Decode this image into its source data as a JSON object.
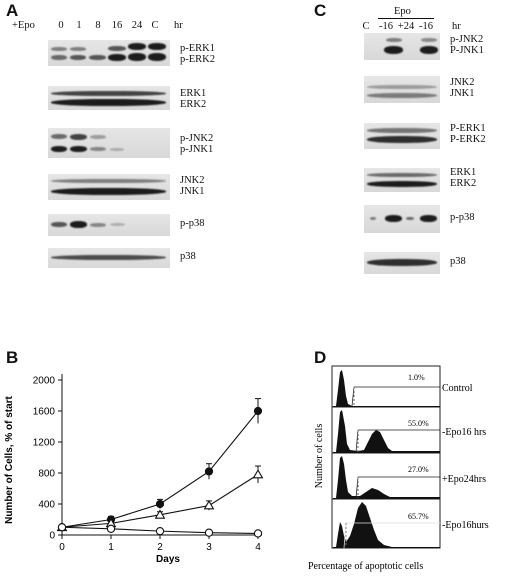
{
  "panelA": {
    "letter": "A",
    "treatment": "+Epo",
    "lanes": [
      "0",
      "1",
      "8",
      "16",
      "24",
      "C"
    ],
    "unit": "hr",
    "blots": [
      {
        "labels": [
          "p-ERK1",
          "p-ERK2"
        ]
      },
      {
        "labels": [
          "ERK1",
          "ERK2"
        ]
      },
      {
        "labels": [
          "p-JNK2",
          "p-JNK1"
        ]
      },
      {
        "labels": [
          "JNK2",
          "JNK1"
        ]
      },
      {
        "labels": [
          "p-p38"
        ]
      },
      {
        "labels": [
          "p38"
        ]
      }
    ]
  },
  "panelC": {
    "letter": "C",
    "treatment": "Epo",
    "lanes": [
      "C",
      "-16",
      "+24",
      "-16"
    ],
    "unit": "hr",
    "blots": [
      {
        "labels": [
          "p-JNK2",
          "P-JNK1"
        ]
      },
      {
        "labels": [
          "JNK2",
          "JNK1"
        ]
      },
      {
        "labels": [
          "P-ERK1",
          "P-ERK2"
        ]
      },
      {
        "labels": [
          "ERK1",
          "ERK2"
        ]
      },
      {
        "labels": [
          "p-p38"
        ]
      },
      {
        "labels": [
          "p38"
        ]
      }
    ]
  },
  "panelB": {
    "letter": "B",
    "chart_data": {
      "type": "line",
      "xlabel": "Days",
      "ylabel": "Number of Cells, % of start",
      "x": [
        0,
        1,
        2,
        3,
        4
      ],
      "xticks": [
        "0",
        "1",
        "2",
        "3",
        "4"
      ],
      "ylim": [
        0,
        2000
      ],
      "yticks": [
        "0",
        "400",
        "800",
        "1200",
        "1600",
        "2000"
      ],
      "grid": false,
      "series": [
        {
          "marker": "filled-circle",
          "values": [
            100,
            200,
            400,
            820,
            1600
          ],
          "errors": [
            20,
            40,
            60,
            100,
            160
          ]
        },
        {
          "marker": "open-triangle",
          "values": [
            100,
            150,
            260,
            380,
            780
          ],
          "errors": [
            20,
            30,
            40,
            60,
            110
          ]
        },
        {
          "marker": "open-circle",
          "values": [
            100,
            80,
            50,
            30,
            20
          ],
          "errors": [
            10,
            10,
            8,
            6,
            5
          ]
        }
      ]
    }
  },
  "panelD": {
    "letter": "D",
    "ylabel": "Number of cells",
    "xlabel": "Percentage of apoptotic cells",
    "histograms": [
      {
        "percent": "1.0%",
        "label": "Control"
      },
      {
        "percent": "55.0%",
        "label": "-Epo16 hrs"
      },
      {
        "percent": "27.0%",
        "label": "+Epo24hrs"
      },
      {
        "percent": "65.7%",
        "label": "-Epo16hurs"
      }
    ]
  }
}
